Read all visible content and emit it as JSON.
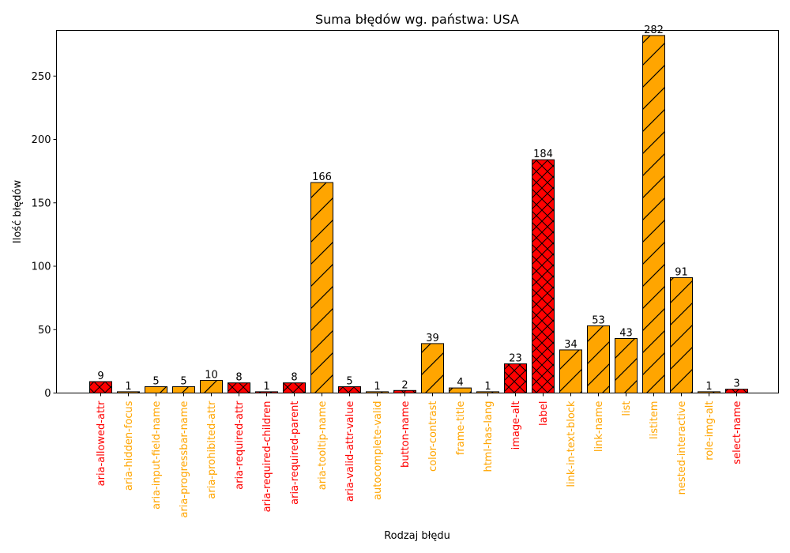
{
  "chart_data": {
    "type": "bar",
    "title": "Suma błędów wg. państwa: USA",
    "xlabel": "Rodzaj błędu",
    "ylabel": "Ilość błędów",
    "ylim": [
      0,
      286
    ],
    "yticks": [
      0,
      50,
      100,
      150,
      200,
      250
    ],
    "grid": false,
    "categories": [
      "aria-allowed-attr",
      "aria-hidden-focus",
      "aria-input-field-name",
      "aria-progressbar-name",
      "aria-prohibited-attr",
      "aria-required-attr",
      "aria-required-children",
      "aria-required-parent",
      "aria-tooltip-name",
      "aria-valid-attr-value",
      "autocomplete-valid",
      "button-name",
      "color-contrast",
      "frame-title",
      "html-has-lang",
      "image-alt",
      "label",
      "link-in-text-block",
      "link-name",
      "list",
      "listitem",
      "nested-interactive",
      "role-img-alt",
      "select-name"
    ],
    "values": [
      9,
      1,
      5,
      5,
      10,
      8,
      1,
      8,
      166,
      5,
      1,
      2,
      39,
      4,
      1,
      23,
      184,
      34,
      53,
      43,
      282,
      91,
      1,
      3
    ],
    "severity": [
      "critical",
      "serious",
      "serious",
      "serious",
      "serious",
      "critical",
      "critical",
      "critical",
      "serious",
      "critical",
      "serious",
      "critical",
      "serious",
      "serious",
      "serious",
      "critical",
      "critical",
      "serious",
      "serious",
      "serious",
      "serious",
      "serious",
      "serious",
      "critical"
    ],
    "colors": {
      "critical": "#ff0000",
      "serious": "#ffa500",
      "edge": "#000000"
    },
    "hatch": {
      "critical": "cross",
      "serious": "diagonal"
    }
  }
}
